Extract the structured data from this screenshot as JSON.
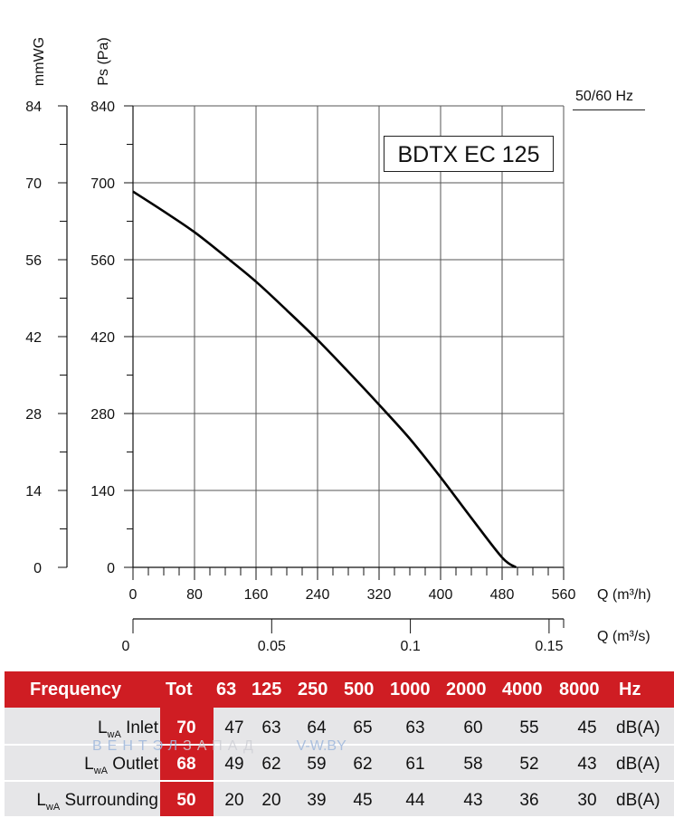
{
  "chart_data": {
    "type": "line",
    "title": "BDTX EC 125",
    "frequency_note": "50/60 Hz",
    "y_left_label": "mmWG",
    "y_left_ticks": [
      "84",
      "70",
      "56",
      "42",
      "28",
      "14",
      "0"
    ],
    "y_label": "Ps (Pa)",
    "y_ticks": [
      "840",
      "700",
      "560",
      "420",
      "280",
      "140",
      "0"
    ],
    "ylim": [
      0,
      840
    ],
    "x_label": "Q (m³/h)",
    "x_ticks": [
      "0",
      "80",
      "160",
      "240",
      "320",
      "400",
      "480",
      "560"
    ],
    "xlim": [
      0,
      560
    ],
    "x2_label": "Q (m³/s)",
    "x2_ticks": [
      "0",
      "0.05",
      "0.1",
      "0.15"
    ],
    "grid": true,
    "series": [
      {
        "x": [
          0,
          40,
          80,
          120,
          160,
          200,
          240,
          280,
          320,
          360,
          400,
          440,
          480,
          498
        ],
        "y": [
          684,
          648,
          610,
          566,
          520,
          468,
          414,
          356,
          296,
          234,
          164,
          90,
          18,
          0
        ],
        "color": "#000000"
      }
    ]
  },
  "sound_table": {
    "header": {
      "frequency": "Frequency",
      "tot": "Tot",
      "bands": [
        "63",
        "125",
        "250",
        "500",
        "1000",
        "2000",
        "4000",
        "8000"
      ],
      "unit": "Hz"
    },
    "rows": [
      {
        "label_main": "L",
        "label_sub": "wA",
        "label_rest": " Inlet",
        "tot": "70",
        "values": [
          "47",
          "63",
          "64",
          "65",
          "63",
          "60",
          "55",
          "45"
        ],
        "unit": "dB(A)"
      },
      {
        "label_main": "L",
        "label_sub": "wA",
        "label_rest": " Outlet",
        "tot": "68",
        "values": [
          "49",
          "62",
          "59",
          "62",
          "61",
          "58",
          "52",
          "43"
        ],
        "unit": "dB(A)"
      },
      {
        "label_main": "L",
        "label_sub": "wA",
        "label_rest": " Surrounding",
        "tot": "50",
        "values": [
          "20",
          "20",
          "39",
          "45",
          "44",
          "43",
          "36",
          "30"
        ],
        "unit": "dB(A)"
      }
    ],
    "accent_color": "#cf1d23"
  },
  "watermark": {
    "part1": "ВЕНТЭЛ",
    "part2": "ЗАПАД",
    "part3": "V-W.BY"
  }
}
